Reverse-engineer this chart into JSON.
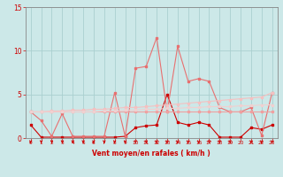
{
  "x": [
    0,
    1,
    2,
    3,
    4,
    5,
    6,
    7,
    8,
    9,
    10,
    11,
    12,
    13,
    14,
    15,
    16,
    17,
    18,
    19,
    20,
    21,
    22,
    23
  ],
  "series": [
    {
      "name": "line1_dark",
      "color": "#cc0000",
      "linewidth": 0.8,
      "marker": "s",
      "markersize": 1.8,
      "y": [
        1.5,
        0.1,
        0.1,
        0.1,
        0.1,
        0.1,
        0.1,
        0.1,
        0.1,
        0.2,
        1.2,
        1.4,
        1.5,
        5.0,
        1.8,
        1.5,
        1.8,
        1.5,
        0.1,
        0.1,
        0.1,
        1.2,
        1.0,
        1.5
      ]
    },
    {
      "name": "line2_medium",
      "color": "#e87070",
      "linewidth": 0.8,
      "marker": "s",
      "markersize": 1.8,
      "y": [
        3.0,
        2.0,
        0.2,
        2.8,
        0.2,
        0.2,
        0.2,
        0.2,
        5.2,
        0.2,
        8.0,
        8.2,
        11.5,
        3.0,
        10.5,
        6.5,
        6.8,
        6.5,
        3.5,
        3.0,
        3.0,
        3.5,
        0.3,
        5.2
      ]
    },
    {
      "name": "line3_pale1",
      "color": "#f0a0a0",
      "linewidth": 0.8,
      "marker": "s",
      "markersize": 1.8,
      "y": [
        3.0,
        3.0,
        3.0,
        3.0,
        3.0,
        3.0,
        3.0,
        3.0,
        3.0,
        3.0,
        3.0,
        3.0,
        3.0,
        3.0,
        3.0,
        3.0,
        3.0,
        3.0,
        3.0,
        3.0,
        3.0,
        3.0,
        3.0,
        3.0
      ]
    },
    {
      "name": "line4_pale2",
      "color": "#f5c0c0",
      "linewidth": 0.8,
      "marker": "s",
      "markersize": 1.5,
      "y": [
        3.0,
        3.0,
        3.1,
        3.1,
        3.2,
        3.2,
        3.3,
        3.3,
        3.4,
        3.5,
        3.5,
        3.6,
        3.7,
        3.8,
        3.9,
        4.0,
        4.1,
        4.2,
        4.3,
        4.4,
        4.5,
        4.6,
        4.7,
        5.2
      ]
    },
    {
      "name": "line5_pale3",
      "color": "#f0d0d0",
      "linewidth": 0.8,
      "marker": "s",
      "markersize": 1.5,
      "y": [
        3.0,
        3.0,
        3.0,
        3.0,
        3.0,
        3.0,
        3.0,
        3.1,
        3.1,
        3.2,
        3.2,
        3.3,
        3.3,
        3.4,
        3.4,
        3.5,
        3.5,
        3.6,
        3.6,
        3.6,
        3.7,
        3.7,
        3.8,
        3.8
      ]
    }
  ],
  "arrows_x": [
    0,
    1,
    2,
    3,
    4,
    5,
    6,
    7,
    8,
    9,
    10,
    11,
    12,
    13,
    14,
    15,
    16,
    17,
    18,
    19,
    21,
    22,
    23
  ],
  "ylim": [
    0,
    15
  ],
  "yticks": [
    0,
    5,
    10,
    15
  ],
  "xticks": [
    0,
    1,
    2,
    3,
    4,
    5,
    6,
    7,
    8,
    9,
    10,
    11,
    12,
    13,
    14,
    15,
    16,
    17,
    18,
    19,
    20,
    21,
    22,
    23
  ],
  "xlabel": "Vent moyen/en rafales ( km/h )",
  "bg_color": "#cce8e8",
  "grid_color": "#aad0d0",
  "tick_color": "#cc0000",
  "label_color": "#cc0000",
  "arrow_color": "#cc0000",
  "spine_color": "#888888"
}
